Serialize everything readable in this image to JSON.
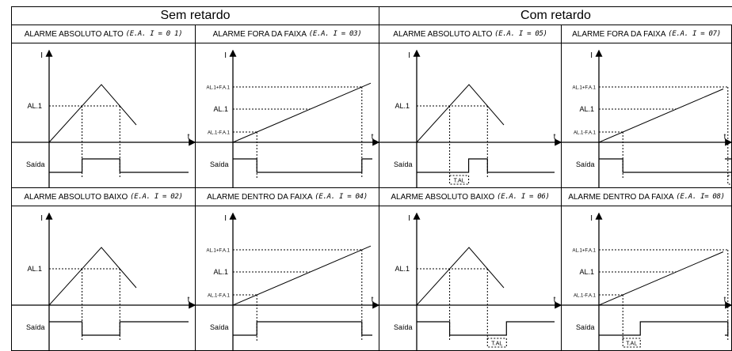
{
  "groups": [
    {
      "label": "Sem retardo"
    },
    {
      "label": "Com retardo"
    }
  ],
  "axes": {
    "y_symbol": "I",
    "x_symbol": "t",
    "output_label": "Saída"
  },
  "levels": {
    "al1": "AL.1",
    "upper": "AL.1+F.A.1",
    "lower": "AL.1-F.A.1"
  },
  "delay_label": "T.AL",
  "panels": [
    {
      "title": "ALARME ABSOLUTO ALTO",
      "param": "(E.A. I = 0 1)",
      "kind": "abs",
      "mode": "high",
      "delayed": false
    },
    {
      "title": "ALARME FORA DA FAIXA",
      "param": "(E.A. I = 03)",
      "kind": "band",
      "mode": "out",
      "delayed": false
    },
    {
      "title": "ALARME ABSOLUTO ALTO",
      "param": "(E.A. I = 05)",
      "kind": "abs",
      "mode": "high",
      "delayed": true
    },
    {
      "title": "ALARME FORA DA FAIXA",
      "param": "(E.A. I = 07)",
      "kind": "band",
      "mode": "out",
      "delayed": true
    },
    {
      "title": "ALARME ABSOLUTO BAIXO",
      "param": "(E.A. I = 02)",
      "kind": "abs",
      "mode": "low",
      "delayed": false
    },
    {
      "title": "ALARME DENTRO DA FAIXA",
      "param": "(E.A. I = 04)",
      "kind": "band",
      "mode": "in",
      "delayed": false
    },
    {
      "title": "ALARME ABSOLUTO BAIXO",
      "param": "(E.A. I = 06)",
      "kind": "abs",
      "mode": "low",
      "delayed": true
    },
    {
      "title": "ALARME DENTRO DA FAIXA",
      "param": "(E.A. I= 08)",
      "kind": "band",
      "mode": "in",
      "delayed": true
    }
  ]
}
